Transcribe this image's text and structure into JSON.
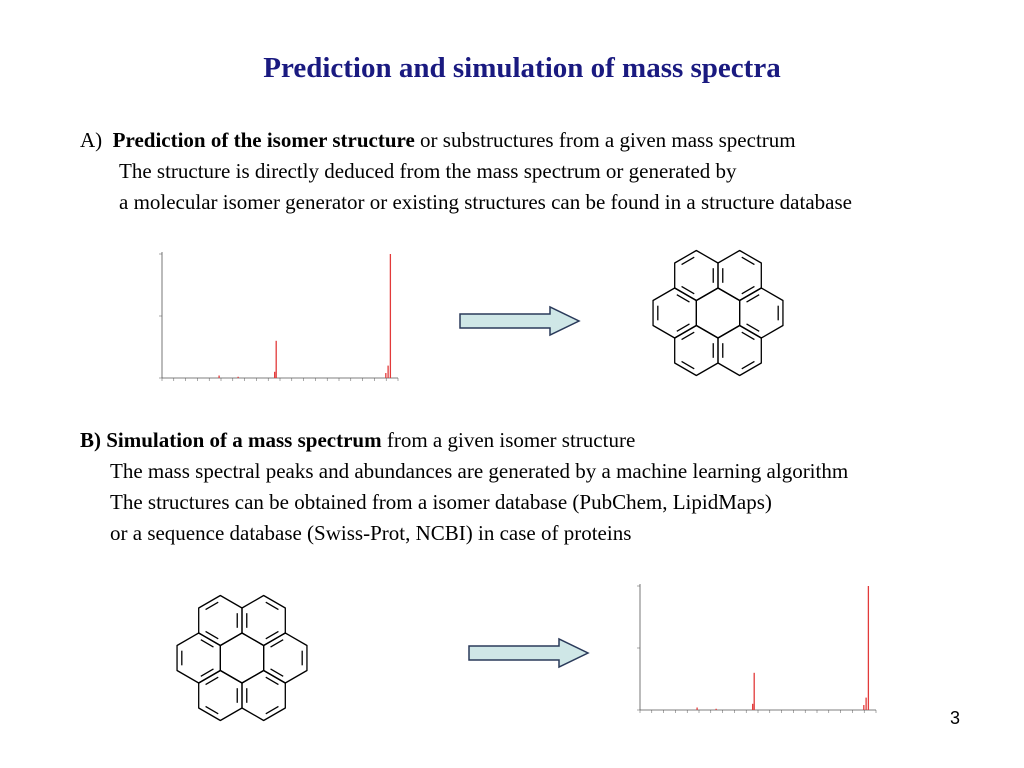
{
  "slide": {
    "title": "Prediction and simulation of mass spectra",
    "page_number": "3"
  },
  "section_a": {
    "marker": "A)",
    "heading_bold": "Prediction of the isomer structure",
    "heading_rest": " or substructures from a given mass spectrum",
    "lines": [
      "The structure is directly deduced from the mass spectrum or generated by",
      "a molecular isomer generator or existing structures can be found in a structure database"
    ]
  },
  "section_b": {
    "marker": "B)",
    "heading_bold": "Simulation of a mass spectrum",
    "heading_rest": " from a given isomer structure",
    "lines": [
      "The mass spectral peaks and abundances are generated by a machine learning algorithm",
      "The structures can be obtained from a isomer database (PubChem, LipidMaps)",
      "or  a sequence database (Swiss-Prot, NCBI) in case of proteins"
    ]
  },
  "colors": {
    "title": "#1a1a80",
    "arrow_fill": "#cfe7e7",
    "arrow_stroke": "#2a3a5a",
    "spectrum_peak": "#e23a3a",
    "spectrum_axis": "#555555",
    "molecule_stroke": "#000000"
  },
  "spectrum": {
    "peaks": [
      {
        "x": 150,
        "y": 30
      },
      {
        "x": 300,
        "y": 100
      },
      {
        "x": 297,
        "y": 10
      },
      {
        "x": 294,
        "y": 4
      },
      {
        "x": 148,
        "y": 5
      },
      {
        "x": 75,
        "y": 2
      },
      {
        "x": 100,
        "y": 1
      }
    ],
    "xlim": [
      0,
      310
    ],
    "ylim": [
      0,
      100
    ]
  }
}
